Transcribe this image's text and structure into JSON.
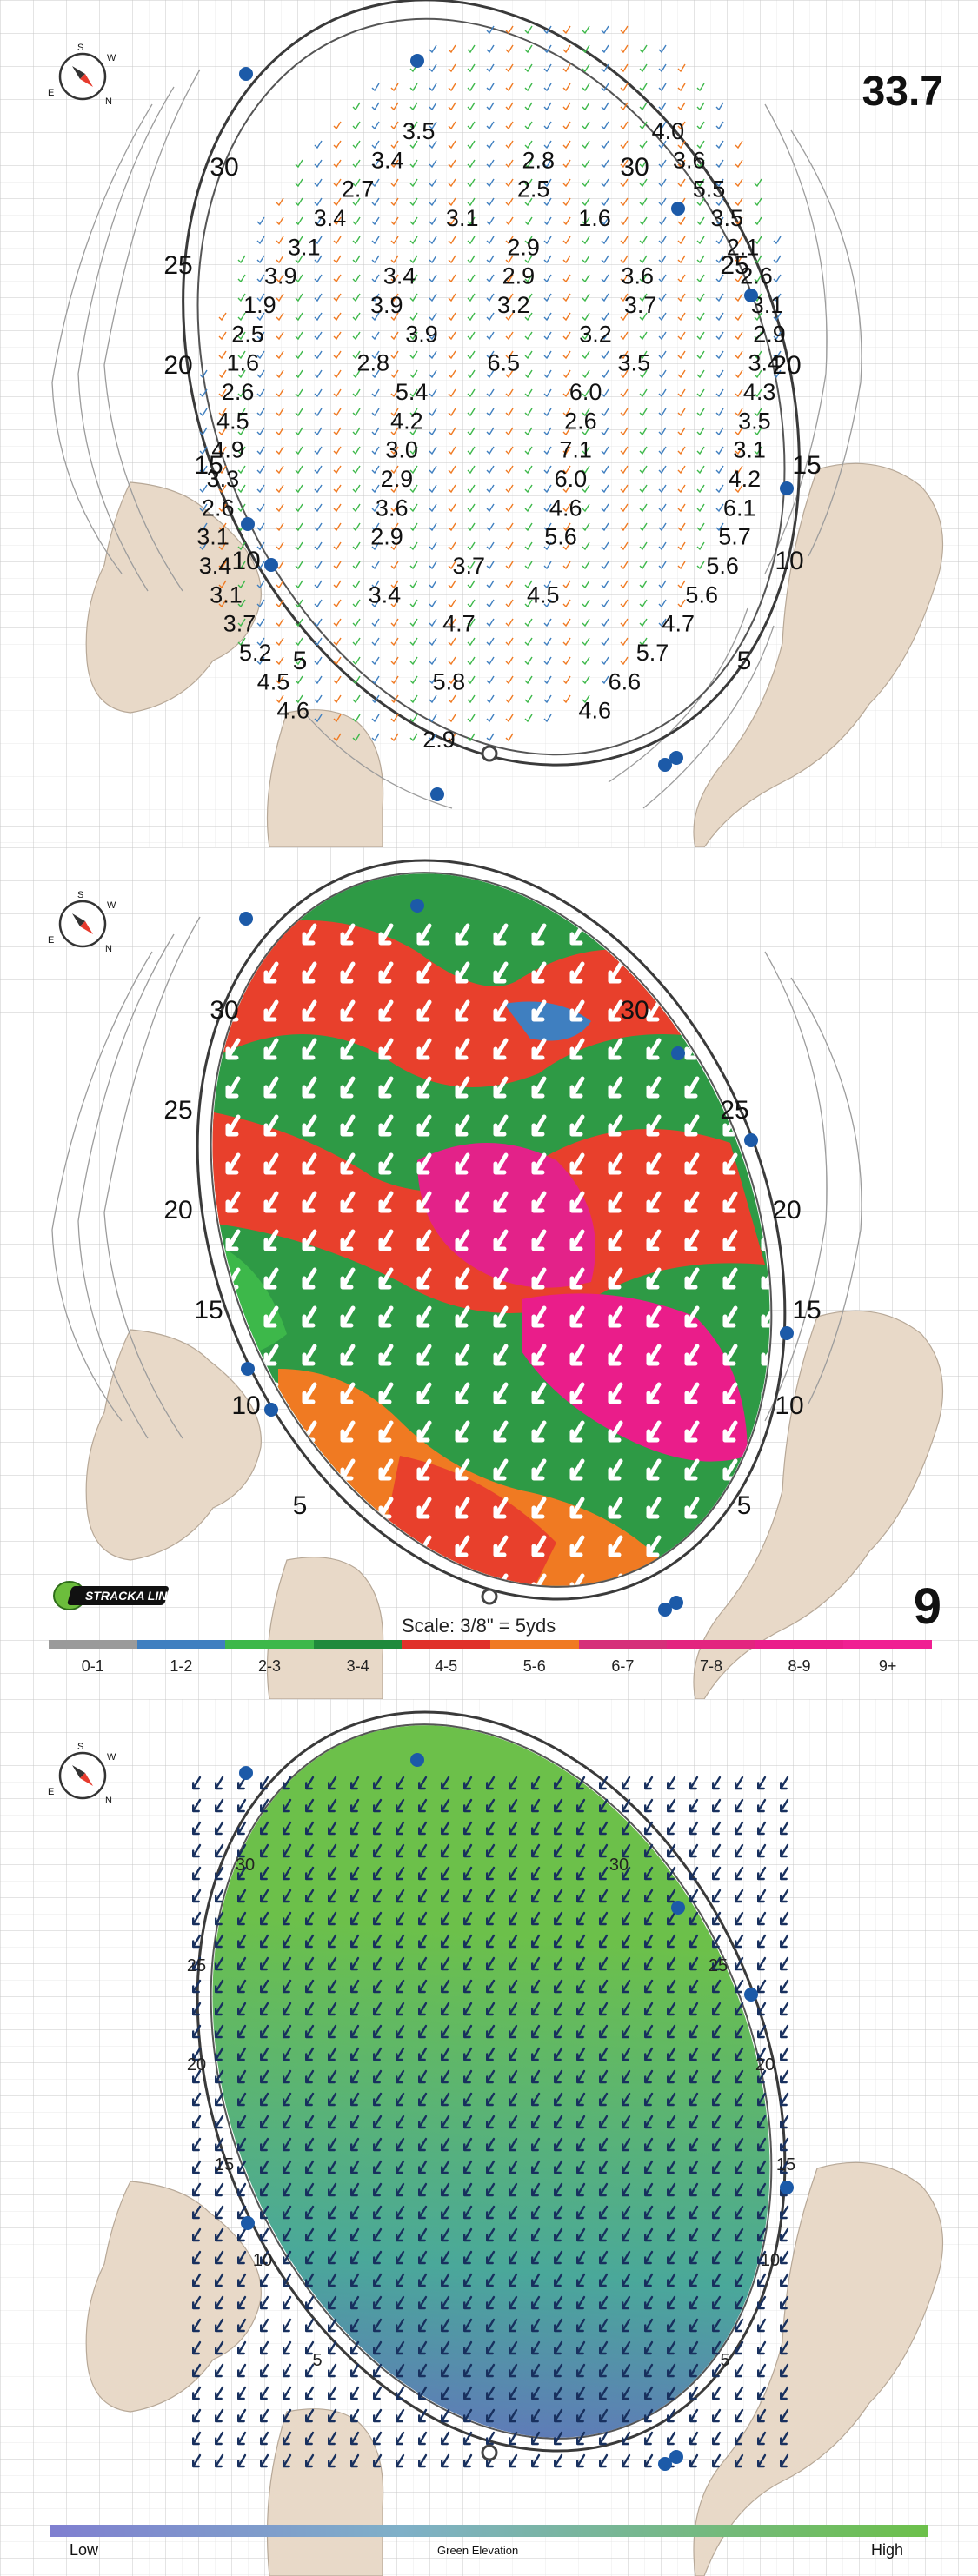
{
  "hole": {
    "stimp_readout": "33.7",
    "number": "9"
  },
  "panel1": {
    "distance_labels_left": [
      "30",
      "25",
      "20",
      "15",
      "10",
      "5"
    ],
    "distance_labels_right": [
      "30",
      "25",
      "20",
      "15",
      "10",
      "5"
    ],
    "slope_values": [
      [
        "3.5",
        "4.0"
      ],
      [
        "3.4",
        "2.8",
        "3.6"
      ],
      [
        "2.7",
        "2.5",
        "5.5"
      ],
      [
        "3.4",
        "3.1",
        "1.6",
        "3.5"
      ],
      [
        "3.1",
        "2.9",
        "2.1"
      ],
      [
        "3.9",
        "3.4",
        "2.9",
        "3.6",
        "2.6"
      ],
      [
        "1.9",
        "3.9",
        "3.2",
        "3.7",
        "3.1"
      ],
      [
        "2.5",
        "3.9",
        "3.2",
        "2.9"
      ],
      [
        "1.6",
        "2.8",
        "6.5",
        "3.5",
        "3.4"
      ],
      [
        "2.6",
        "5.4",
        "6.0",
        "4.3"
      ],
      [
        "4.5",
        "4.2",
        "2.6",
        "3.5"
      ],
      [
        "4.9",
        "3.0",
        "7.1",
        "3.1"
      ],
      [
        "3.3",
        "2.9",
        "6.0",
        "4.2"
      ],
      [
        "2.6",
        "3.6",
        "4.6",
        "6.1"
      ],
      [
        "3.1",
        "2.9",
        "5.6",
        "5.7"
      ],
      [
        "3.4",
        "3.7",
        "5.6"
      ],
      [
        "3.1",
        "3.4",
        "4.5",
        "5.6"
      ],
      [
        "3.7",
        "4.7",
        "4.7"
      ],
      [
        "5.2",
        "5.7"
      ],
      [
        "4.5",
        "5.8",
        "6.6"
      ],
      [
        "4.6",
        "4.6"
      ],
      [
        "2.9"
      ]
    ]
  },
  "panel2": {
    "distance_labels_left": [
      "30",
      "25",
      "20",
      "15",
      "10",
      "5"
    ],
    "distance_labels_right": [
      "30",
      "25",
      "20",
      "15",
      "10",
      "5"
    ],
    "scale_text": "Scale: 3/8\" = 5yds",
    "brand_text": "STRACKA LINE",
    "legend": [
      {
        "label": "0-1",
        "color": "#9a9a9a"
      },
      {
        "label": "1-2",
        "color": "#3f7fc0"
      },
      {
        "label": "2-3",
        "color": "#3db84a"
      },
      {
        "label": "3-4",
        "color": "#1f8a3c"
      },
      {
        "label": "4-5",
        "color": "#e0312a"
      },
      {
        "label": "5-6",
        "color": "#f07a22"
      },
      {
        "label": "6-7",
        "color": "#d62f7a"
      },
      {
        "label": "7-8",
        "color": "#e3247f"
      },
      {
        "label": "8-9",
        "color": "#ea1d8a"
      },
      {
        "label": "9+",
        "color": "#f01f92"
      }
    ]
  },
  "panel3": {
    "distance_labels_left": [
      "30",
      "25",
      "20",
      "15",
      "10",
      "5"
    ],
    "distance_labels_right": [
      "30",
      "25",
      "20",
      "15",
      "10",
      "5"
    ],
    "elevation_low": "Low",
    "elevation_high": "High",
    "elevation_caption": "Green Elevation",
    "gradient_colors": [
      "#6a62c8",
      "#4aa89a",
      "#6cc04a"
    ]
  },
  "colors": {
    "bunker": "#e8d9c8",
    "grid": "#c8c8c8",
    "outline": "#333333",
    "pin": "#1c5aa8",
    "arrow_dark": "#18305e"
  },
  "icons": {
    "compass": "compass-icon",
    "pin": "pin-marker-icon"
  }
}
